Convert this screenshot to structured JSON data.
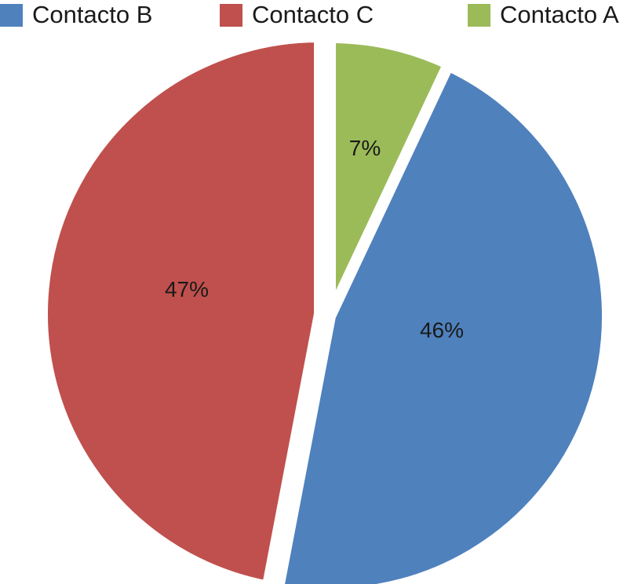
{
  "chart_data": {
    "type": "pie",
    "legend_position": "top",
    "slices": [
      {
        "name": "Contacto A",
        "value": 7,
        "label": "7%",
        "color": "#9BBB59"
      },
      {
        "name": "Contacto B",
        "value": 46,
        "label": "46%",
        "color": "#4F81BD"
      },
      {
        "name": "Contacto C",
        "value": 47,
        "label": "47%",
        "color": "#C0504D"
      }
    ],
    "legend": [
      {
        "name": "Contacto B",
        "color": "#4F81BD"
      },
      {
        "name": "Contacto C",
        "color": "#C0504D"
      },
      {
        "name": "Contacto A",
        "color": "#9BBB59"
      }
    ]
  }
}
